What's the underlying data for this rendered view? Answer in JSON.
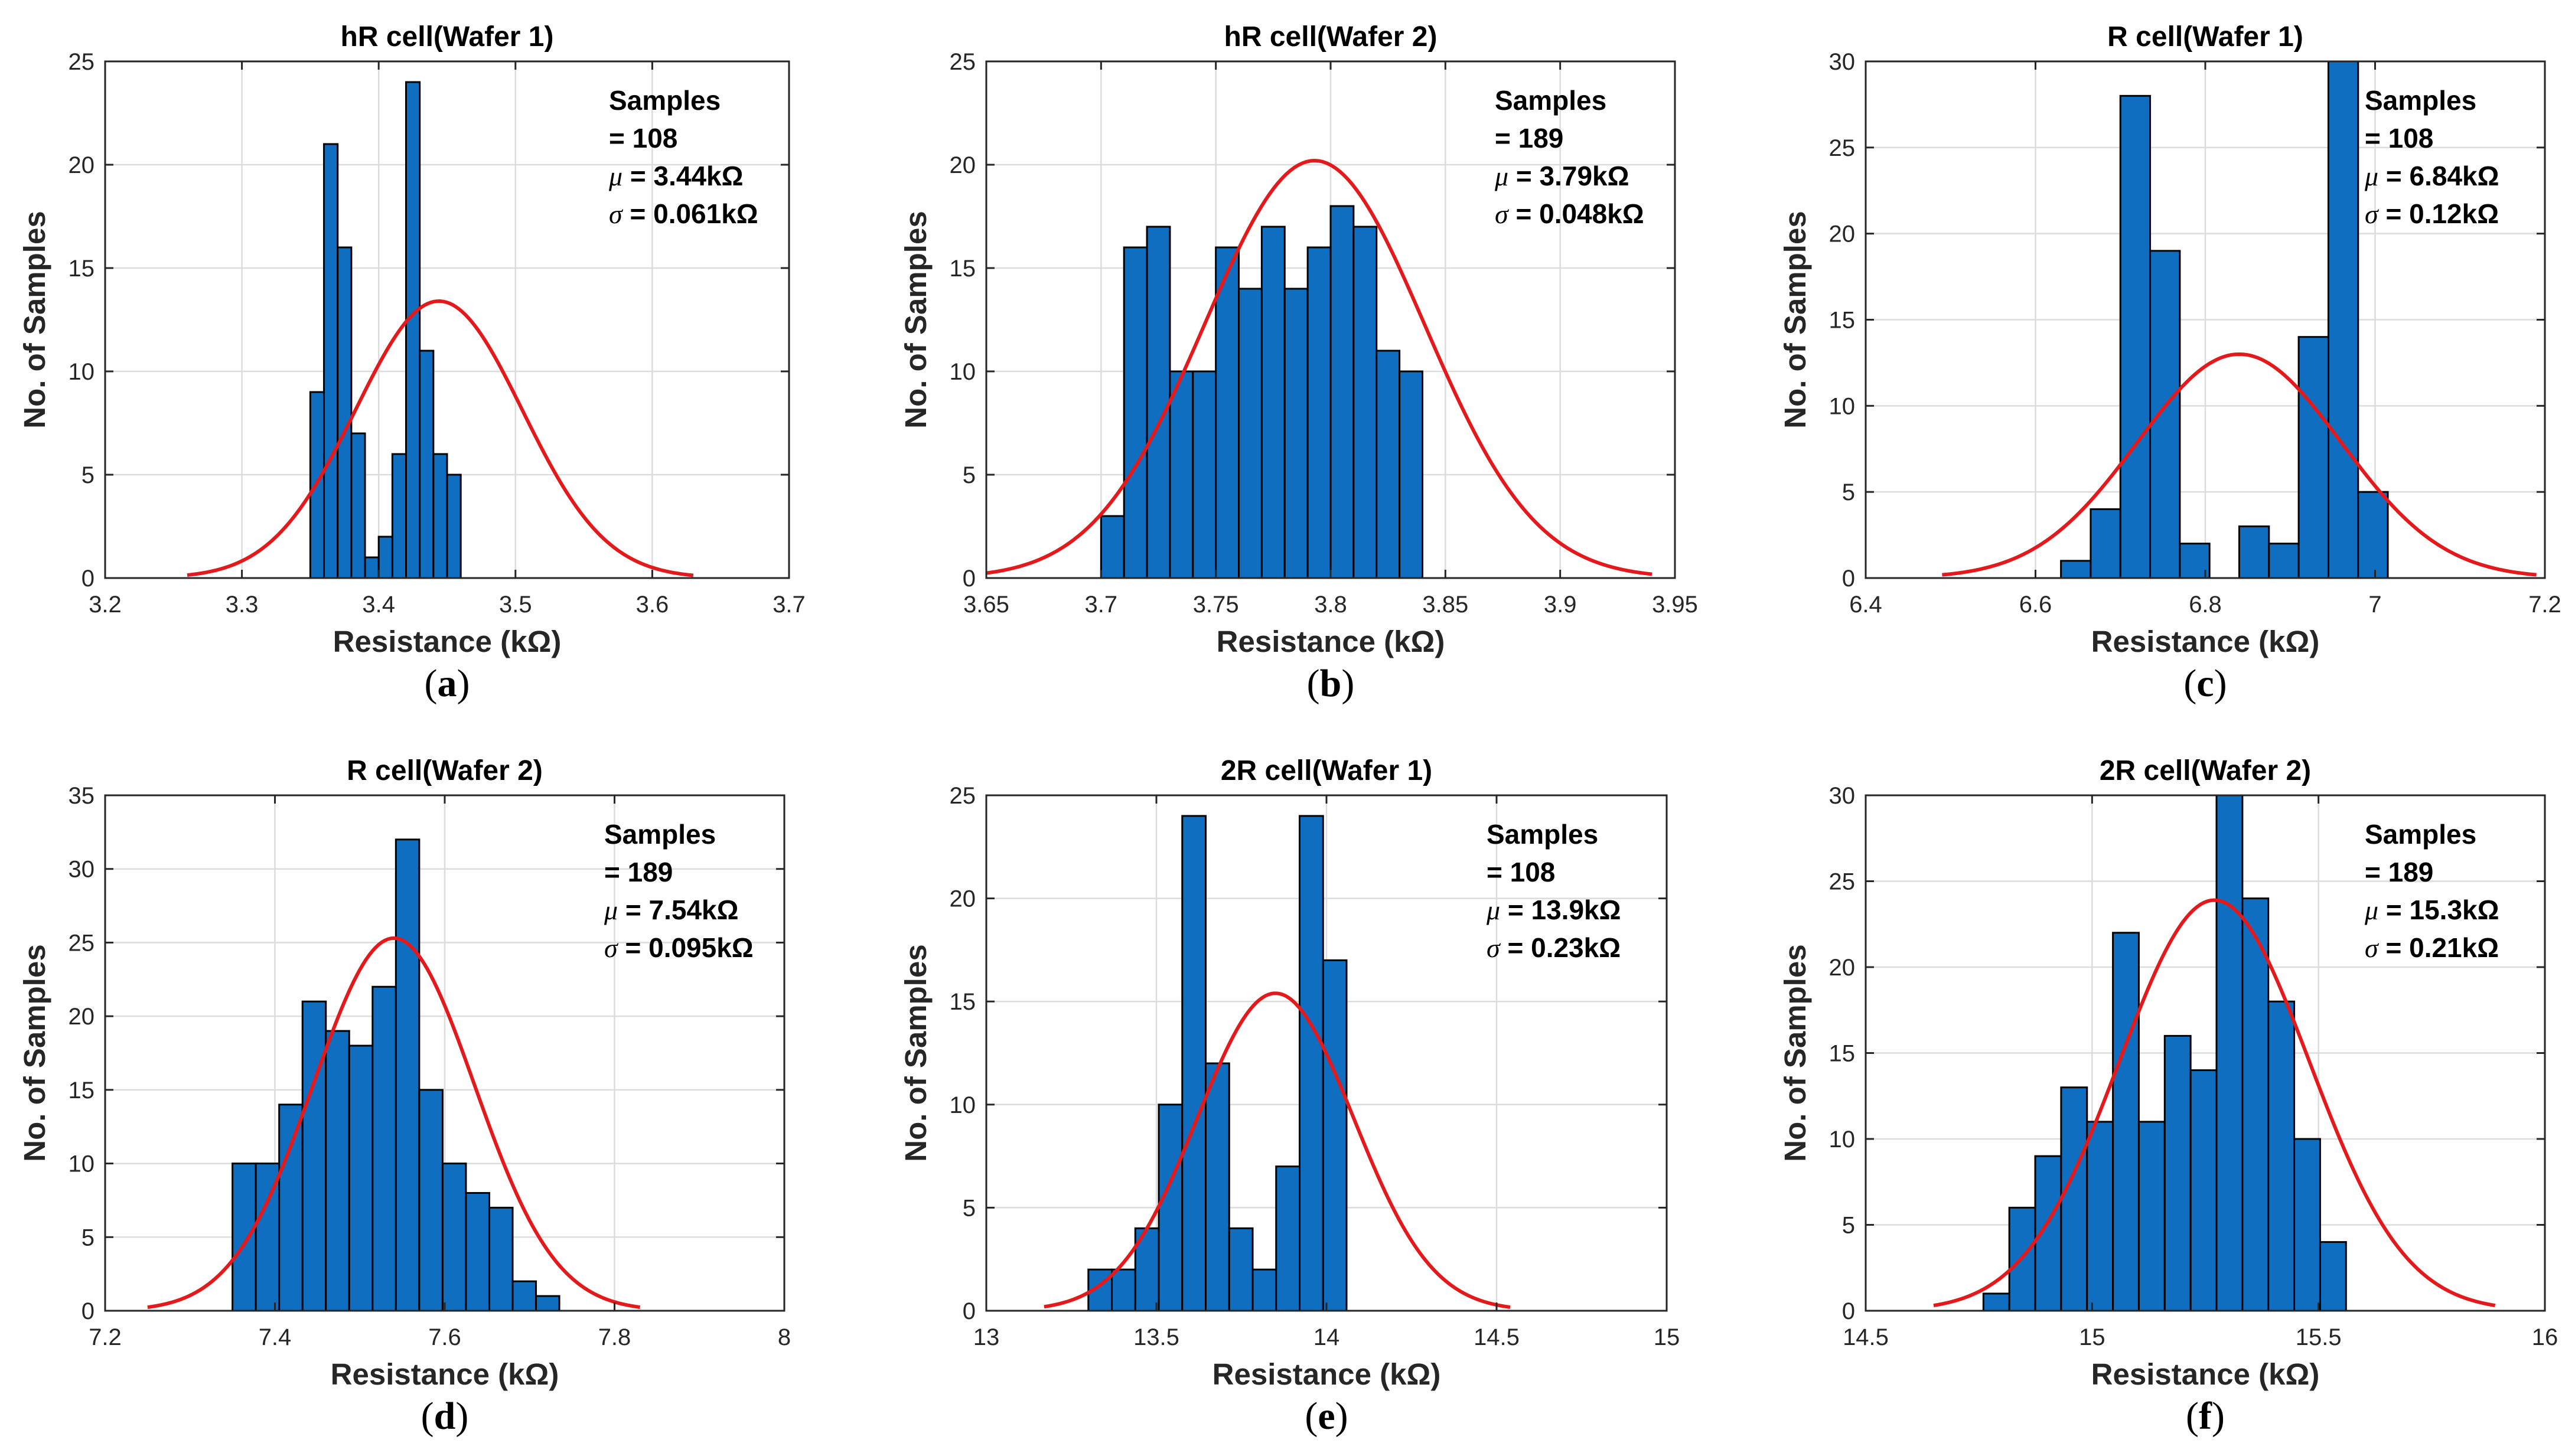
{
  "chart_data": [
    {
      "type": "bar",
      "title": "hR cell(Wafer 1)",
      "xlabel": "Resistance (kΩ)",
      "ylabel": "No. of Samples",
      "caption": "a",
      "xlim": [
        3.2,
        3.7
      ],
      "ylim": [
        0,
        25
      ],
      "xticks": [
        "3.2",
        "3.3",
        "3.4",
        "3.5",
        "3.6",
        "3.7"
      ],
      "yticks": [
        "0",
        "5",
        "10",
        "15",
        "20",
        "25"
      ],
      "grid": true,
      "bin_start": 3.35,
      "bin_width": 0.01,
      "values": [
        9,
        21,
        16,
        7,
        1,
        2,
        6,
        24,
        11,
        6,
        5
      ],
      "fit": {
        "mu": 3.444,
        "sigma": 0.061,
        "peak": 13.4,
        "range": [
          3.26,
          3.63
        ]
      },
      "stats": {
        "samples_label": "Samples",
        "samples_value": " = 108",
        "mu_value": " = 3.44kΩ",
        "sigma_value": " = 0.061kΩ"
      },
      "bar_color": "#0F6EBF",
      "fit_color": "#E3191C"
    },
    {
      "type": "bar",
      "title": "hR cell(Wafer 2)",
      "xlabel": "Resistance (kΩ)",
      "ylabel": "No. of Samples",
      "caption": "b",
      "xlim": [
        3.65,
        3.95
      ],
      "ylim": [
        0,
        25
      ],
      "xticks": [
        "3.65",
        "3.7",
        "3.75",
        "3.8",
        "3.85",
        "3.9",
        "3.95"
      ],
      "yticks": [
        "0",
        "5",
        "10",
        "15",
        "20",
        "25"
      ],
      "grid": true,
      "bin_start": 3.7,
      "bin_width": 0.01,
      "values": [
        3,
        16,
        17,
        10,
        10,
        16,
        14,
        17,
        14,
        16,
        18,
        17,
        11,
        10
      ],
      "fit": {
        "mu": 3.793,
        "sigma": 0.048,
        "peak": 20.2,
        "range": [
          3.65,
          3.94
        ]
      },
      "stats": {
        "samples_label": "Samples",
        "samples_value": " = 189",
        "mu_value": " = 3.79kΩ",
        "sigma_value": " = 0.048kΩ"
      },
      "bar_color": "#0F6EBF",
      "fit_color": "#E3191C"
    },
    {
      "type": "bar",
      "title": "R cell(Wafer 1)",
      "xlabel": "Resistance (kΩ)",
      "ylabel": "No. of Samples",
      "caption": "c",
      "xlim": [
        6.4,
        7.2
      ],
      "ylim": [
        0,
        30
      ],
      "xticks": [
        "6.4",
        "6.6",
        "6.8",
        "7",
        "7.2"
      ],
      "yticks": [
        "0",
        "5",
        "10",
        "15",
        "20",
        "25",
        "30"
      ],
      "grid": true,
      "bin_start": 6.63,
      "bin_width": 0.035,
      "values": [
        1,
        4,
        28,
        19,
        2,
        0,
        3,
        2,
        14,
        30,
        5
      ],
      "fit": {
        "mu": 6.84,
        "sigma": 0.12,
        "peak": 13.0,
        "range": [
          6.49,
          7.19
        ]
      },
      "stats": {
        "samples_label": "Samples",
        "samples_value": " = 108",
        "mu_value": " = 6.84kΩ",
        "sigma_value": " = 0.12kΩ"
      },
      "bar_color": "#0F6EBF",
      "fit_color": "#E3191C"
    },
    {
      "type": "bar",
      "title": "R cell(Wafer 2)",
      "xlabel": "Resistance (kΩ)",
      "ylabel": "No. of Samples",
      "caption": "d",
      "xlim": [
        7.2,
        8
      ],
      "ylim": [
        0,
        35
      ],
      "xticks": [
        "7.2",
        "7.4",
        "7.6",
        "7.8",
        "8"
      ],
      "yticks": [
        "0",
        "5",
        "10",
        "15",
        "20",
        "25",
        "30",
        "35"
      ],
      "grid": true,
      "bin_start": 7.35,
      "bin_width": 0.0275,
      "values": [
        10,
        10,
        14,
        21,
        19,
        18,
        22,
        32,
        15,
        10,
        8,
        7,
        2,
        1
      ],
      "fit": {
        "mu": 7.54,
        "sigma": 0.095,
        "peak": 25.3,
        "range": [
          7.25,
          7.83
        ]
      },
      "stats": {
        "samples_label": "Samples",
        "samples_value": " = 189",
        "mu_value": " = 7.54kΩ",
        "sigma_value": " = 0.095kΩ"
      },
      "bar_color": "#0F6EBF",
      "fit_color": "#E3191C"
    },
    {
      "type": "bar",
      "title": "2R cell(Wafer 1)",
      "xlabel": "Resistance (kΩ)",
      "ylabel": "No. of Samples",
      "caption": "e",
      "xlim": [
        13,
        15
      ],
      "ylim": [
        0,
        25
      ],
      "xticks": [
        "13",
        "13.5",
        "14",
        "14.5",
        "15"
      ],
      "yticks": [
        "0",
        "5",
        "10",
        "15",
        "20",
        "25"
      ],
      "grid": true,
      "bin_start": 13.3,
      "bin_width": 0.069,
      "values": [
        2,
        2,
        4,
        10,
        24,
        12,
        4,
        2,
        7,
        24,
        17
      ],
      "fit": {
        "mu": 13.85,
        "sigma": 0.23,
        "peak": 15.4,
        "range": [
          13.17,
          14.54
        ]
      },
      "stats": {
        "samples_label": "Samples",
        "samples_value": " = 108",
        "mu_value": " = 13.9kΩ",
        "sigma_value": " = 0.23kΩ"
      },
      "bar_color": "#0F6EBF",
      "fit_color": "#E3191C"
    },
    {
      "type": "bar",
      "title": "2R cell(Wafer 2)",
      "xlabel": "Resistance (kΩ)",
      "ylabel": "No. of Samples",
      "caption": "f",
      "xlim": [
        14.5,
        16
      ],
      "ylim": [
        0,
        30
      ],
      "xticks": [
        "14.5",
        "15",
        "15.5",
        "16"
      ],
      "yticks": [
        "0",
        "5",
        "10",
        "15",
        "20",
        "25",
        "30"
      ],
      "grid": true,
      "bin_start": 14.76,
      "bin_width": 0.0572,
      "values": [
        1,
        6,
        9,
        13,
        11,
        22,
        11,
        16,
        14,
        30,
        24,
        18,
        10,
        4
      ],
      "fit": {
        "mu": 15.27,
        "sigma": 0.21,
        "peak": 23.9,
        "range": [
          14.65,
          15.89
        ]
      },
      "stats": {
        "samples_label": "Samples",
        "samples_value": " = 189",
        "mu_value": " = 15.3kΩ",
        "sigma_value": " = 0.21kΩ"
      },
      "bar_color": "#0F6EBF",
      "fit_color": "#E3191C"
    }
  ]
}
